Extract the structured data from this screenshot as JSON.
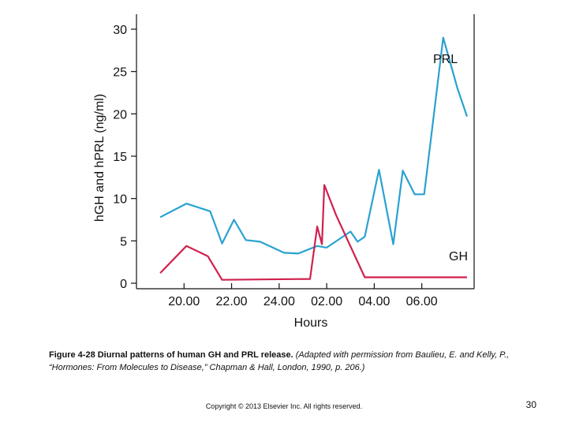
{
  "chart_data": {
    "type": "line",
    "xlabel": "Hours",
    "ylabel": "hGH and hPRL (ng/ml)",
    "x_ticks": [
      "20.00",
      "22.00",
      "24.00",
      "02.00",
      "04.00",
      "06.00"
    ],
    "y_ticks": [
      0,
      5,
      10,
      15,
      20,
      25,
      30
    ],
    "ylim": [
      0,
      30
    ],
    "xlim_hours_elapsed": [
      0,
      16
    ],
    "series": [
      {
        "name": "PRL",
        "color": "#2aa2d0",
        "points": [
          {
            "t": 19.0,
            "v": 7.8
          },
          {
            "t": 20.1,
            "v": 9.4
          },
          {
            "t": 21.1,
            "v": 8.5
          },
          {
            "t": 21.6,
            "v": 4.7
          },
          {
            "t": 22.1,
            "v": 7.5
          },
          {
            "t": 22.6,
            "v": 5.1
          },
          {
            "t": 23.2,
            "v": 4.9
          },
          {
            "t": 24.2,
            "v": 3.6
          },
          {
            "t": 24.8,
            "v": 3.5
          },
          {
            "t": 25.6,
            "v": 4.4
          },
          {
            "t": 26.0,
            "v": 4.2
          },
          {
            "t": 27.0,
            "v": 6.1
          },
          {
            "t": 27.3,
            "v": 4.9
          },
          {
            "t": 27.6,
            "v": 5.5
          },
          {
            "t": 28.2,
            "v": 13.4
          },
          {
            "t": 28.8,
            "v": 4.6
          },
          {
            "t": 29.2,
            "v": 13.3
          },
          {
            "t": 29.7,
            "v": 10.5
          },
          {
            "t": 30.1,
            "v": 10.5
          },
          {
            "t": 30.9,
            "v": 29.0
          },
          {
            "t": 31.5,
            "v": 23.0
          },
          {
            "t": 31.9,
            "v": 19.7
          }
        ]
      },
      {
        "name": "GH",
        "color": "#d0214e",
        "points": [
          {
            "t": 19.0,
            "v": 1.2
          },
          {
            "t": 20.1,
            "v": 4.4
          },
          {
            "t": 21.0,
            "v": 3.2
          },
          {
            "t": 21.6,
            "v": 0.4
          },
          {
            "t": 25.3,
            "v": 0.5
          },
          {
            "t": 25.6,
            "v": 6.7
          },
          {
            "t": 25.8,
            "v": 4.6
          },
          {
            "t": 25.9,
            "v": 11.6
          },
          {
            "t": 26.4,
            "v": 8.0
          },
          {
            "t": 27.6,
            "v": 0.7
          },
          {
            "t": 31.9,
            "v": 0.7
          }
        ]
      }
    ]
  },
  "caption": {
    "figure_label": "Figure 4-28 Diurnal patterns of human GH and PRL release.",
    "source_note": "(Adapted with permission from Baulieu, E. and Kelly, P., “Hormones: From Molecules to Disease,” Chapman & Hall, London, 1990, p. 206.)"
  },
  "footer": {
    "copyright": "Copyright © 2013 Elsevier Inc. All rights reserved.",
    "page_number": "30"
  }
}
